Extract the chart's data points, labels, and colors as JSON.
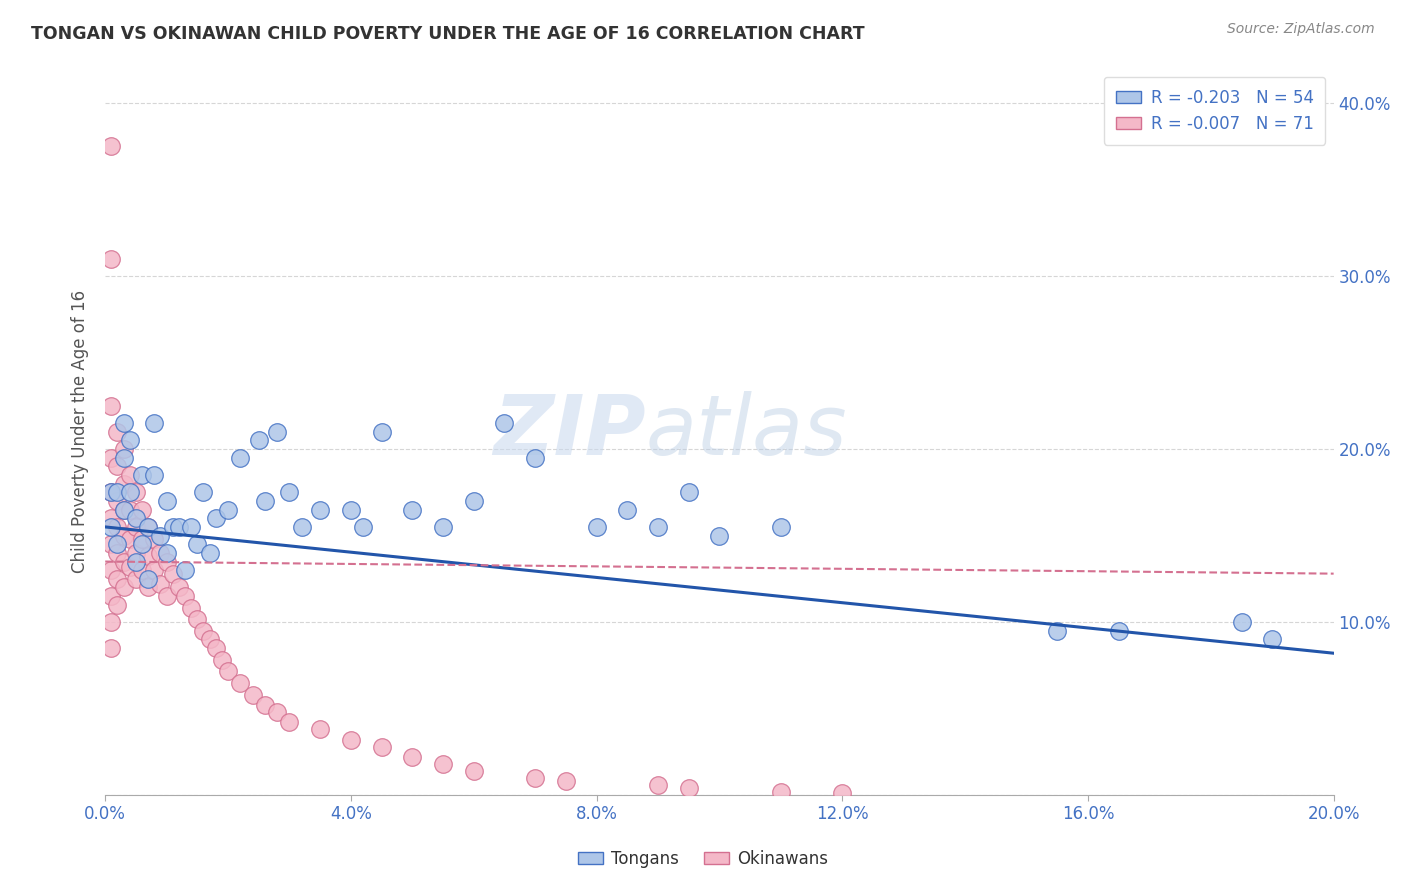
{
  "title": "TONGAN VS OKINAWAN CHILD POVERTY UNDER THE AGE OF 16 CORRELATION CHART",
  "source": "Source: ZipAtlas.com",
  "ylabel": "Child Poverty Under the Age of 16",
  "xlim": [
    0.0,
    0.2
  ],
  "ylim": [
    0.0,
    0.42
  ],
  "xticks": [
    0.0,
    0.04,
    0.08,
    0.12,
    0.16,
    0.2
  ],
  "xtick_labels": [
    "0.0%",
    "4.0%",
    "8.0%",
    "12.0%",
    "16.0%",
    "20.0%"
  ],
  "yticks": [
    0.0,
    0.1,
    0.2,
    0.3,
    0.4
  ],
  "ytick_labels": [
    "",
    "10.0%",
    "20.0%",
    "30.0%",
    "40.0%"
  ],
  "tongan_color": "#aec6e8",
  "tongan_edge_color": "#4472c4",
  "okinawan_color": "#f4b8c8",
  "okinawan_edge_color": "#d47090",
  "tongan_line_color": "#2255aa",
  "okinawan_line_color": "#d47090",
  "legend_r_tongan": "R = -0.203",
  "legend_n_tongan": "N = 54",
  "legend_r_okinawan": "R = -0.007",
  "legend_n_okinawan": "N = 71",
  "legend_text_color": "#4472c4",
  "watermark": "ZIPatlas",
  "background_color": "#ffffff",
  "grid_color": "#cccccc",
  "title_color": "#333333",
  "source_color": "#888888",
  "axis_tick_color": "#4472c4",
  "ylabel_color": "#555555",
  "tongan_trend_start_y": 0.155,
  "tongan_trend_end_y": 0.082,
  "okinawan_trend_start_y": 0.135,
  "okinawan_trend_end_y": 0.128,
  "tongan_x": [
    0.001,
    0.001,
    0.002,
    0.002,
    0.003,
    0.003,
    0.003,
    0.004,
    0.004,
    0.005,
    0.005,
    0.006,
    0.006,
    0.007,
    0.007,
    0.008,
    0.008,
    0.009,
    0.01,
    0.01,
    0.011,
    0.012,
    0.013,
    0.014,
    0.015,
    0.016,
    0.017,
    0.018,
    0.02,
    0.022,
    0.025,
    0.026,
    0.028,
    0.03,
    0.032,
    0.035,
    0.04,
    0.042,
    0.045,
    0.05,
    0.055,
    0.06,
    0.065,
    0.07,
    0.08,
    0.085,
    0.09,
    0.095,
    0.1,
    0.11,
    0.155,
    0.165,
    0.185,
    0.19
  ],
  "tongan_y": [
    0.175,
    0.155,
    0.175,
    0.145,
    0.215,
    0.195,
    0.165,
    0.205,
    0.175,
    0.16,
    0.135,
    0.185,
    0.145,
    0.155,
    0.125,
    0.215,
    0.185,
    0.15,
    0.17,
    0.14,
    0.155,
    0.155,
    0.13,
    0.155,
    0.145,
    0.175,
    0.14,
    0.16,
    0.165,
    0.195,
    0.205,
    0.17,
    0.21,
    0.175,
    0.155,
    0.165,
    0.165,
    0.155,
    0.21,
    0.165,
    0.155,
    0.17,
    0.215,
    0.195,
    0.155,
    0.165,
    0.155,
    0.175,
    0.15,
    0.155,
    0.095,
    0.095,
    0.1,
    0.09
  ],
  "okinawan_x": [
    0.001,
    0.001,
    0.001,
    0.001,
    0.001,
    0.001,
    0.001,
    0.001,
    0.001,
    0.001,
    0.001,
    0.002,
    0.002,
    0.002,
    0.002,
    0.002,
    0.002,
    0.002,
    0.003,
    0.003,
    0.003,
    0.003,
    0.003,
    0.003,
    0.004,
    0.004,
    0.004,
    0.004,
    0.005,
    0.005,
    0.005,
    0.005,
    0.006,
    0.006,
    0.006,
    0.007,
    0.007,
    0.007,
    0.008,
    0.008,
    0.009,
    0.009,
    0.01,
    0.01,
    0.011,
    0.012,
    0.013,
    0.014,
    0.015,
    0.016,
    0.017,
    0.018,
    0.019,
    0.02,
    0.022,
    0.024,
    0.026,
    0.028,
    0.03,
    0.035,
    0.04,
    0.045,
    0.05,
    0.055,
    0.06,
    0.07,
    0.075,
    0.09,
    0.095,
    0.11,
    0.12
  ],
  "okinawan_y": [
    0.375,
    0.31,
    0.225,
    0.195,
    0.175,
    0.16,
    0.145,
    0.13,
    0.115,
    0.1,
    0.085,
    0.21,
    0.19,
    0.17,
    0.155,
    0.14,
    0.125,
    0.11,
    0.2,
    0.18,
    0.165,
    0.15,
    0.135,
    0.12,
    0.185,
    0.165,
    0.148,
    0.132,
    0.175,
    0.155,
    0.14,
    0.125,
    0.165,
    0.148,
    0.13,
    0.155,
    0.138,
    0.12,
    0.148,
    0.13,
    0.14,
    0.122,
    0.135,
    0.115,
    0.128,
    0.12,
    0.115,
    0.108,
    0.102,
    0.095,
    0.09,
    0.085,
    0.078,
    0.072,
    0.065,
    0.058,
    0.052,
    0.048,
    0.042,
    0.038,
    0.032,
    0.028,
    0.022,
    0.018,
    0.014,
    0.01,
    0.008,
    0.006,
    0.004,
    0.002,
    0.001
  ]
}
